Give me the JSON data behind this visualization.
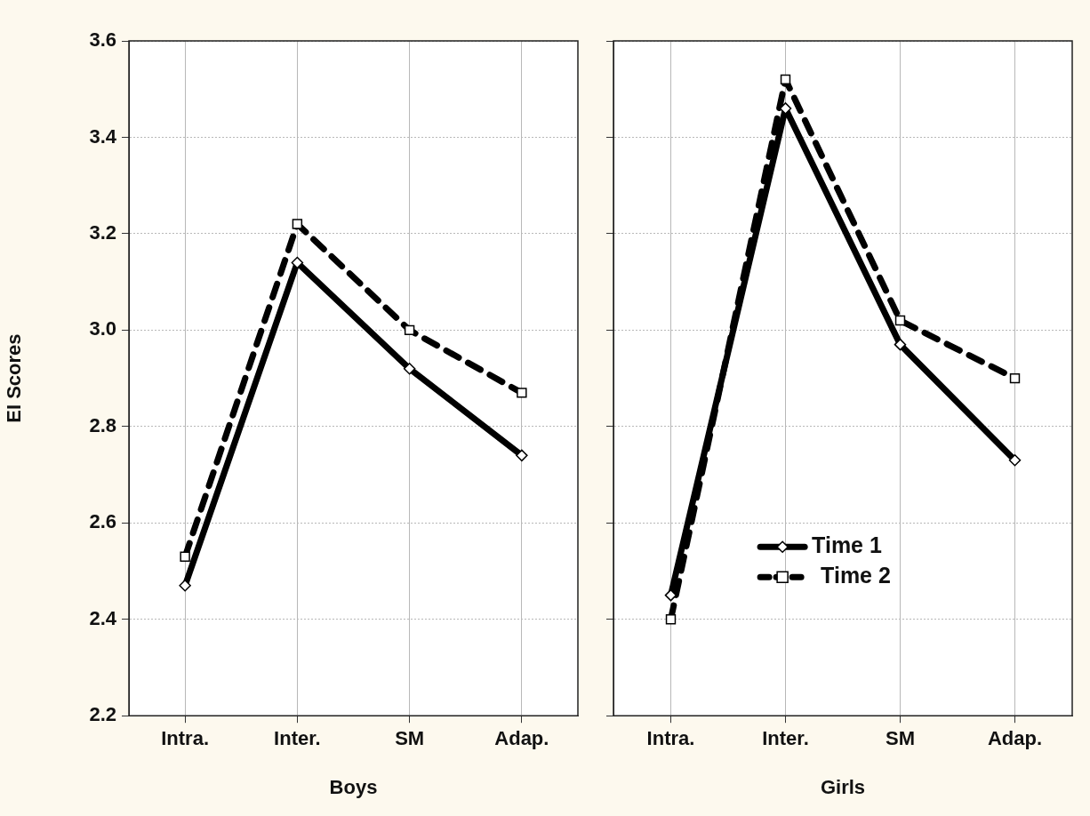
{
  "chart_data": [
    {
      "type": "line",
      "xlabel": "Boys",
      "ylabel": "EI Scores",
      "categories": [
        "Intra.",
        "Inter.",
        "SM",
        "Adap."
      ],
      "ylim": [
        2.2,
        3.6
      ],
      "yticks": [
        2.2,
        2.4,
        2.6,
        2.8,
        {
          "value": 3,
          "label": "3.0"
        },
        3.2,
        3.4,
        3.6
      ],
      "grid": true,
      "series": [
        {
          "color": "#000000",
          "marker": "diamond",
          "line_style": "solid",
          "values": [
            2.47,
            3.14,
            2.92,
            2.74
          ]
        },
        {
          "color": "#000000",
          "marker": "square",
          "line_style": "dashed",
          "values": [
            2.53,
            3.22,
            3.0,
            2.87
          ]
        }
      ]
    },
    {
      "type": "line",
      "xlabel": "Girls",
      "categories": [
        "Intra.",
        "Inter.",
        "SM",
        "Adap."
      ],
      "ylim": [
        2.2,
        3.6
      ],
      "yticks": [
        2.2,
        2.4,
        2.6,
        2.8,
        3.0,
        3.2,
        3.4,
        3.6
      ],
      "grid": true,
      "tick_labels": "x",
      "legend": "bottom",
      "series": [
        {
          "name": "Time 1",
          "color": "#000000",
          "marker": "diamond",
          "line_style": "solid",
          "values": [
            2.45,
            3.46,
            2.97,
            2.73
          ]
        },
        {
          "name": "Time 2",
          "color": "#000000",
          "marker": "square",
          "line_style": "dashed",
          "values": [
            2.4,
            3.52,
            3.02,
            2.9
          ]
        }
      ]
    }
  ]
}
